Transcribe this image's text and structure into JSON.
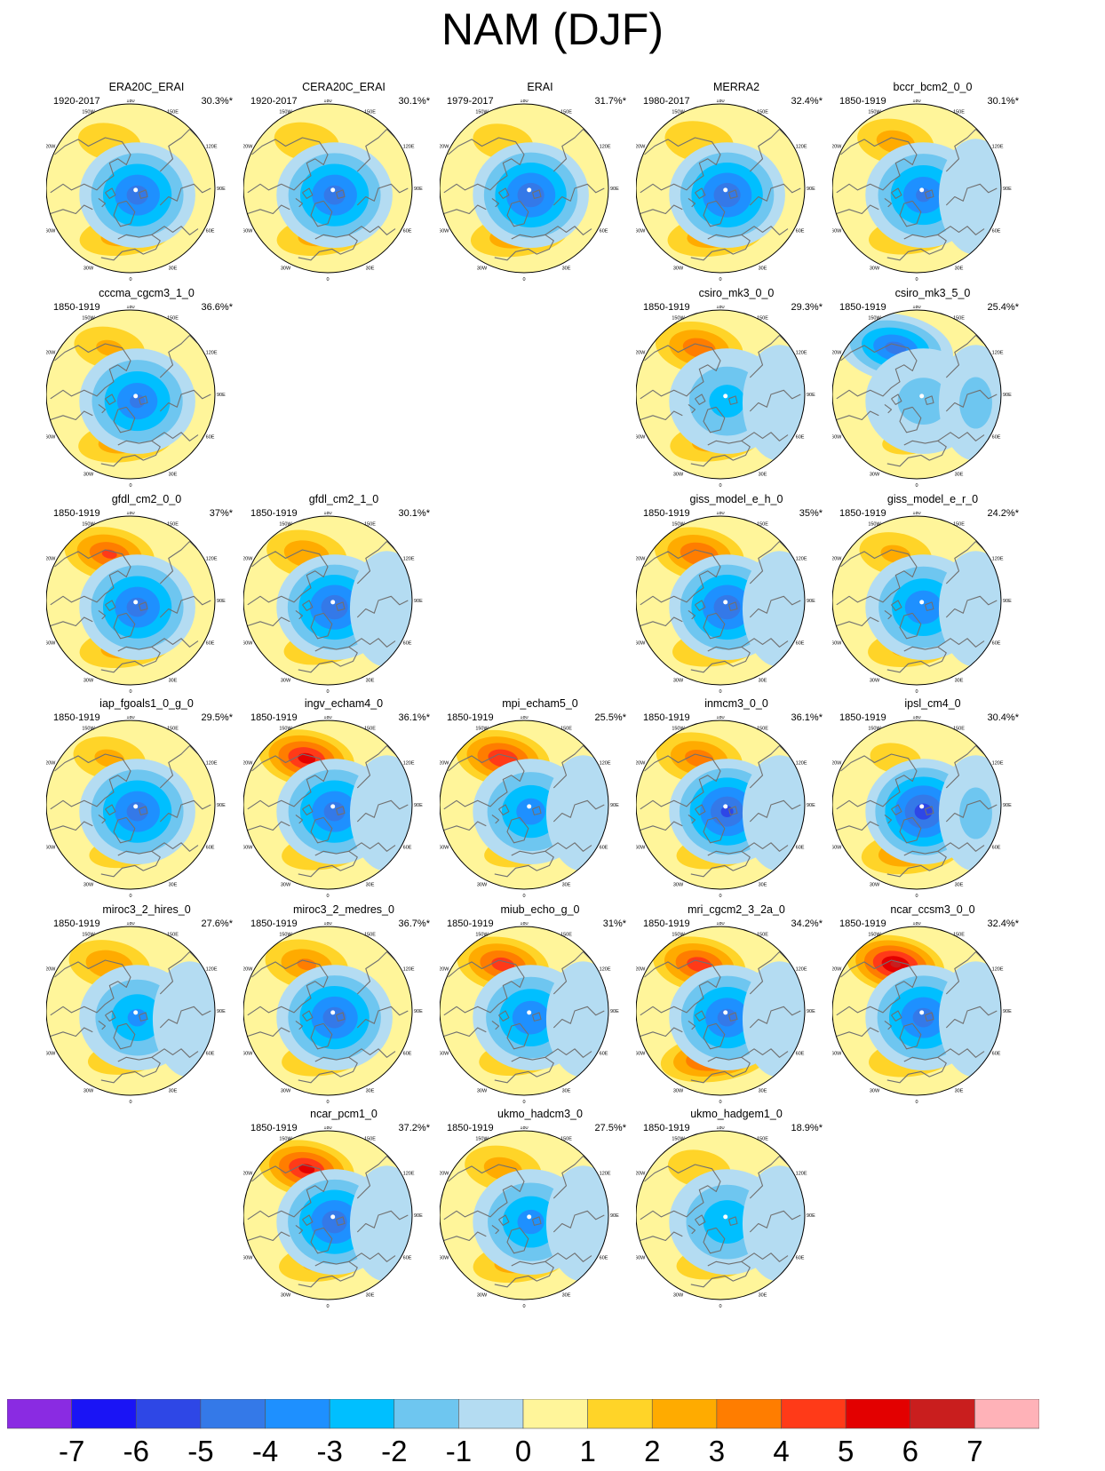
{
  "title": "NAM (DJF)",
  "panels": [
    {
      "name": "ERA20C_ERAI",
      "period": "1920-2017",
      "variance": "30.3%*",
      "row": 0,
      "col": 0,
      "pos": {
        "lat": 0.55,
        "dx": -0.05,
        "dy": 0.1
      },
      "neg": [
        {
          "dx": 0.25,
          "dy": -0.5,
          "s": 1.0
        },
        {
          "dx": 0.15,
          "dy": 0.55,
          "s": 1.2
        }
      ],
      "amp": {
        "c": -4.3,
        "n": 1.6,
        "s": 2.6,
        "x": 0
      }
    },
    {
      "name": "CERA20C_ERAI",
      "period": "1920-2017",
      "variance": "30.1%*",
      "row": 0,
      "col": 1,
      "pos": {
        "lat": 0.55,
        "dx": -0.05,
        "dy": 0.1
      },
      "neg": [
        {
          "dx": 0.25,
          "dy": -0.5,
          "s": 1.0
        },
        {
          "dx": 0.15,
          "dy": 0.55,
          "s": 1.2
        }
      ],
      "amp": {
        "c": -4.3,
        "n": 1.7,
        "s": 2.6,
        "x": 0
      }
    },
    {
      "name": "ERAI",
      "period": "1979-2017",
      "variance": "31.7%*",
      "row": 0,
      "col": 2,
      "pos": {
        "lat": 0.55,
        "dx": -0.05,
        "dy": 0.1
      },
      "neg": [
        {
          "dx": 0.25,
          "dy": -0.5,
          "s": 1.0
        },
        {
          "dx": 0.15,
          "dy": 0.55,
          "s": 1.2
        }
      ],
      "amp": {
        "c": -4.6,
        "n": 1.5,
        "s": 3.0,
        "x": 0
      }
    },
    {
      "name": "MERRA2",
      "period": "1980-2017",
      "variance": "32.4%*",
      "row": 0,
      "col": 3,
      "pos": {
        "lat": 0.55,
        "dx": -0.05,
        "dy": 0.1
      },
      "neg": [
        {
          "dx": 0.25,
          "dy": -0.5,
          "s": 1.0
        },
        {
          "dx": 0.15,
          "dy": 0.55,
          "s": 1.2
        }
      ],
      "amp": {
        "c": -4.6,
        "n": 1.9,
        "s": 2.9,
        "x": 0
      }
    },
    {
      "name": "bccr_bcm2_0_0",
      "period": "1850-1919",
      "variance": "30.1%*",
      "row": 0,
      "col": 4,
      "pos": {
        "lat": 0.55,
        "dx": -0.05,
        "dy": 0.1
      },
      "neg": [
        {
          "dx": 0.25,
          "dy": -0.5,
          "s": 1.0
        },
        {
          "dx": 0.15,
          "dy": 0.55,
          "s": 1.2
        }
      ],
      "amp": {
        "c": -4.0,
        "n": 2.4,
        "s": 2.2,
        "x": -0.6
      }
    },
    {
      "name": "cccma_cgcm3_1_0",
      "period": "1850-1919",
      "variance": "36.6%*",
      "row": 1,
      "col": 0,
      "pos": {
        "lat": 0.55,
        "dx": -0.05,
        "dy": 0.1
      },
      "neg": [
        {
          "dx": 0.25,
          "dy": -0.5,
          "s": 1.0
        },
        {
          "dx": 0.15,
          "dy": 0.55,
          "s": 1.2
        }
      ],
      "amp": {
        "c": -4.0,
        "n": 2.0,
        "s": 2.8,
        "x": 0
      }
    },
    {
      "name": "csiro_mk3_0_0",
      "period": "1850-1919",
      "variance": "29.3%*",
      "row": 1,
      "col": 3,
      "pos": {
        "lat": 0.7,
        "dx": -0.45,
        "dy": -0.1
      },
      "neg": [
        {
          "dx": 0.25,
          "dy": -0.5,
          "s": 1.0
        },
        {
          "dx": 0.15,
          "dy": 0.55,
          "s": 1.2
        }
      ],
      "amp": {
        "c": -2.3,
        "n": 3.6,
        "s": 2.5,
        "x": -0.6
      }
    },
    {
      "name": "csiro_mk3_5_0",
      "period": "1850-1919",
      "variance": "25.4%*",
      "row": 1,
      "col": 4,
      "pos": {
        "lat": 0.55,
        "dx": -0.05,
        "dy": 0.1
      },
      "neg": [
        {
          "dx": 0.25,
          "dy": -0.5,
          "s": 1.0
        },
        {
          "dx": 0.15,
          "dy": 0.55,
          "s": 1.2
        }
      ],
      "amp": {
        "c": -1.2,
        "n": -4.3,
        "s": 1.2,
        "x": -1.2
      }
    },
    {
      "name": "gfdl_cm2_0_0",
      "period": "1850-1919",
      "variance": "37%*",
      "row": 2,
      "col": 0,
      "pos": {
        "lat": 0.62,
        "dx": -0.15,
        "dy": 0.05
      },
      "neg": [
        {
          "dx": 0.25,
          "dy": -0.5,
          "s": 1.0
        },
        {
          "dx": 0.15,
          "dy": 0.55,
          "s": 1.2
        }
      ],
      "amp": {
        "c": -4.3,
        "n": 4.0,
        "s": 2.6,
        "x": 0
      }
    },
    {
      "name": "gfdl_cm2_1_0",
      "period": "1850-1919",
      "variance": "30.1%*",
      "row": 2,
      "col": 1,
      "pos": {
        "lat": 0.55,
        "dx": -0.05,
        "dy": 0.1
      },
      "neg": [
        {
          "dx": 0.25,
          "dy": -0.5,
          "s": 1.0
        },
        {
          "dx": 0.15,
          "dy": 0.55,
          "s": 1.2
        }
      ],
      "amp": {
        "c": -4.6,
        "n": 2.7,
        "s": 1.8,
        "x": -0.6
      }
    },
    {
      "name": "giss_model_e_h_0",
      "period": "1850-1919",
      "variance": "35%*",
      "row": 2,
      "col": 3,
      "pos": {
        "lat": 0.55,
        "dx": -0.05,
        "dy": 0.1
      },
      "neg": [
        {
          "dx": 0.25,
          "dy": -0.5,
          "s": 1.0
        },
        {
          "dx": 0.15,
          "dy": 0.55,
          "s": 1.2
        }
      ],
      "amp": {
        "c": -4.6,
        "n": 3.9,
        "s": 2.2,
        "x": -0.6
      }
    },
    {
      "name": "giss_model_e_r_0",
      "period": "1850-1919",
      "variance": "24.2%*",
      "row": 2,
      "col": 4,
      "pos": {
        "lat": 0.55,
        "dx": -0.05,
        "dy": 0.1
      },
      "neg": [
        {
          "dx": 0.25,
          "dy": -0.5,
          "s": 1.0
        },
        {
          "dx": 0.15,
          "dy": 0.55,
          "s": 1.2
        }
      ],
      "amp": {
        "c": -3.8,
        "n": 2.1,
        "s": 2.3,
        "x": -0.6
      }
    },
    {
      "name": "iap_fgoals1_0_g_0",
      "period": "1850-1919",
      "variance": "29.5%*",
      "row": 3,
      "col": 0,
      "pos": {
        "lat": 0.55,
        "dx": -0.05,
        "dy": 0.1
      },
      "neg": [
        {
          "dx": 0.25,
          "dy": -0.5,
          "s": 1.0
        },
        {
          "dx": 0.15,
          "dy": 0.55,
          "s": 1.2
        }
      ],
      "amp": {
        "c": -4.3,
        "n": 2.1,
        "s": 1.6,
        "x": 0
      }
    },
    {
      "name": "ingv_echam4_0",
      "period": "1850-1919",
      "variance": "36.1%*",
      "row": 3,
      "col": 1,
      "pos": {
        "lat": 0.55,
        "dx": -0.05,
        "dy": 0.1
      },
      "neg": [
        {
          "dx": 0.25,
          "dy": -0.5,
          "s": 1.0
        },
        {
          "dx": 0.15,
          "dy": 0.55,
          "s": 1.2
        }
      ],
      "amp": {
        "c": -4.3,
        "n": 5.3,
        "s": 2.0,
        "x": -0.6
      }
    },
    {
      "name": "mpi_echam5_0",
      "period": "1850-1919",
      "variance": "25.5%*",
      "row": 3,
      "col": 2,
      "pos": {
        "lat": 0.55,
        "dx": -0.05,
        "dy": 0.1
      },
      "neg": [
        {
          "dx": 0.25,
          "dy": -0.5,
          "s": 1.0
        },
        {
          "dx": 0.15,
          "dy": 0.55,
          "s": 1.2
        }
      ],
      "amp": {
        "c": -3.4,
        "n": 4.8,
        "s": 1.5,
        "x": -0.6
      }
    },
    {
      "name": "inmcm3_0_0",
      "period": "1850-1919",
      "variance": "36.1%*",
      "row": 3,
      "col": 3,
      "pos": {
        "lat": 0.55,
        "dx": -0.05,
        "dy": 0.1
      },
      "neg": [
        {
          "dx": 0.25,
          "dy": -0.5,
          "s": 1.0
        },
        {
          "dx": 0.15,
          "dy": 0.55,
          "s": 1.2
        }
      ],
      "amp": {
        "c": -5.0,
        "n": 3.4,
        "s": 1.8,
        "x": -0.6
      }
    },
    {
      "name": "ipsl_cm4_0",
      "period": "1850-1919",
      "variance": "30.4%*",
      "row": 3,
      "col": 4,
      "pos": {
        "lat": 0.35,
        "dx": -0.05,
        "dy": 0.1
      },
      "neg": [
        {
          "dx": 0.25,
          "dy": -0.5,
          "s": 1.0
        },
        {
          "dx": 0.15,
          "dy": 0.55,
          "s": 1.2
        }
      ],
      "amp": {
        "c": -5.3,
        "n": 1.2,
        "s": 3.4,
        "x": -1.2
      }
    },
    {
      "name": "miroc3_2_hires_0",
      "period": "1850-1919",
      "variance": "27.6%*",
      "row": 4,
      "col": 0,
      "pos": {
        "lat": 0.55,
        "dx": -0.05,
        "dy": 0.1
      },
      "neg": [
        {
          "dx": 0.25,
          "dy": -0.5,
          "s": 1.0
        },
        {
          "dx": 0.15,
          "dy": 0.55,
          "s": 1.2
        }
      ],
      "amp": {
        "c": -3.0,
        "n": 2.8,
        "s": 1.7,
        "x": -0.6
      }
    },
    {
      "name": "miroc3_2_medres_0",
      "period": "1850-1919",
      "variance": "36.7%*",
      "row": 4,
      "col": 1,
      "pos": {
        "lat": 0.55,
        "dx": -0.05,
        "dy": 0.1
      },
      "neg": [
        {
          "dx": 0.25,
          "dy": -0.5,
          "s": 1.0
        },
        {
          "dx": 0.15,
          "dy": 0.55,
          "s": 1.2
        }
      ],
      "amp": {
        "c": -4.4,
        "n": 3.0,
        "s": 2.0,
        "x": 0
      }
    },
    {
      "name": "miub_echo_g_0",
      "period": "1850-1919",
      "variance": "31%*",
      "row": 4,
      "col": 2,
      "pos": {
        "lat": 0.55,
        "dx": -0.05,
        "dy": 0.1
      },
      "neg": [
        {
          "dx": 0.25,
          "dy": -0.5,
          "s": 1.0
        },
        {
          "dx": 0.15,
          "dy": 0.55,
          "s": 1.2
        }
      ],
      "amp": {
        "c": -3.8,
        "n": 4.4,
        "s": 1.9,
        "x": -0.6
      }
    },
    {
      "name": "mri_cgcm2_3_2a_0",
      "period": "1850-1919",
      "variance": "34.2%*",
      "row": 4,
      "col": 3,
      "pos": {
        "lat": 0.55,
        "dx": -0.05,
        "dy": 0.1
      },
      "neg": [
        {
          "dx": 0.25,
          "dy": -0.5,
          "s": 1.0
        },
        {
          "dx": 0.15,
          "dy": 0.55,
          "s": 1.2
        }
      ],
      "amp": {
        "c": -4.2,
        "n": 4.5,
        "s": 4.8,
        "x": -0.3
      }
    },
    {
      "name": "ncar_ccsm3_0_0",
      "period": "1850-1919",
      "variance": "32.4%*",
      "row": 4,
      "col": 4,
      "pos": {
        "lat": 0.55,
        "dx": -0.05,
        "dy": 0.1
      },
      "neg": [
        {
          "dx": 0.25,
          "dy": -0.5,
          "s": 1.0
        },
        {
          "dx": 0.15,
          "dy": 0.55,
          "s": 1.2
        }
      ],
      "amp": {
        "c": -4.3,
        "n": 6.0,
        "s": 2.2,
        "x": -0.6
      }
    },
    {
      "name": "ncar_pcm1_0",
      "period": "1850-1919",
      "variance": "37.2%*",
      "row": 5,
      "col": 1,
      "pos": {
        "lat": 0.55,
        "dx": -0.05,
        "dy": 0.1
      },
      "neg": [
        {
          "dx": 0.25,
          "dy": -0.5,
          "s": 1.0
        },
        {
          "dx": 0.15,
          "dy": 0.55,
          "s": 1.2
        }
      ],
      "amp": {
        "c": -4.5,
        "n": 5.2,
        "s": 2.3,
        "x": -0.6
      }
    },
    {
      "name": "ukmo_hadcm3_0",
      "period": "1850-1919",
      "variance": "27.5%*",
      "row": 5,
      "col": 2,
      "pos": {
        "lat": 0.55,
        "dx": -0.05,
        "dy": 0.1
      },
      "neg": [
        {
          "dx": 0.25,
          "dy": -0.5,
          "s": 1.0
        },
        {
          "dx": 0.15,
          "dy": 0.55,
          "s": 1.2
        }
      ],
      "amp": {
        "c": -3.3,
        "n": 2.4,
        "s": 2.6,
        "x": -0.6
      }
    },
    {
      "name": "ukmo_hadgem1_0",
      "period": "1850-1919",
      "variance": "18.9%*",
      "row": 5,
      "col": 3,
      "pos": {
        "lat": 0.55,
        "dx": -0.05,
        "dy": 0.1
      },
      "neg": [
        {
          "dx": 0.25,
          "dy": -0.5,
          "s": 1.0
        },
        {
          "dx": 0.15,
          "dy": 0.55,
          "s": 1.2
        }
      ],
      "amp": {
        "c": -2.8,
        "n": 1.6,
        "s": 1.8,
        "x": -0.6
      }
    }
  ],
  "map_labels": {
    "top": "180",
    "bottom": "0",
    "upper_left": "150W",
    "upper_right": "150E",
    "left_upper": "120W",
    "right_upper": "120E",
    "left": "90W",
    "right": "90E",
    "left_lower": "60W",
    "right_lower": "60E",
    "lower_left": "30W",
    "lower_right": "30E"
  },
  "colorbar": {
    "labels": [
      "-7",
      "-6",
      "-5",
      "-4",
      "-3",
      "-2",
      "-1",
      "0",
      "1",
      "2",
      "3",
      "4",
      "5",
      "6",
      "7"
    ],
    "colors": [
      "#8a2be2",
      "#1a14f5",
      "#2e47e6",
      "#3479e8",
      "#1e90ff",
      "#00bfff",
      "#6ec6f0",
      "#b4dcf2",
      "#fff59a",
      "#ffd428",
      "#ffab00",
      "#ff7d00",
      "#ff3a18",
      "#e30000",
      "#c91e1e",
      "#ffb2b8"
    ]
  }
}
